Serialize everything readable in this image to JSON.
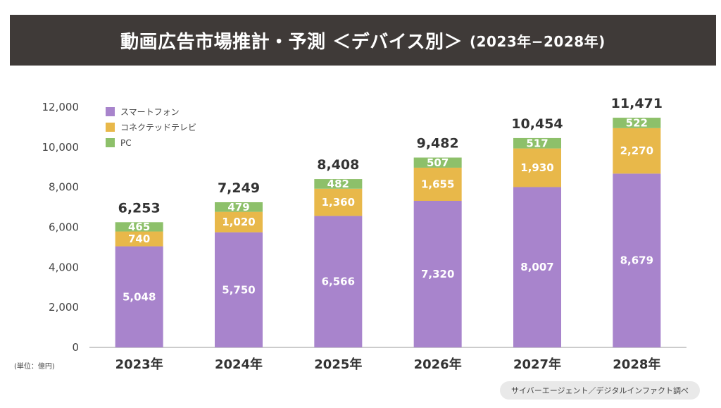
{
  "title": "動画広告市場推計・予測 ＜デバイス別＞",
  "title_range": "(2023年−2028年)",
  "unit_note": "(単位：億円)",
  "source": "サイバーエージェント／デジタルインファクト調べ",
  "colors": {
    "smartphone": "#a884cc",
    "connected_tv": "#e8b84a",
    "pc": "#8dc06a",
    "title_bg": "#3f3a38"
  },
  "chart_data": {
    "type": "bar",
    "stacked": true,
    "categories": [
      "2023年",
      "2024年",
      "2025年",
      "2026年",
      "2027年",
      "2028年"
    ],
    "series": [
      {
        "name": "スマートフォン",
        "values": [
          5048,
          5750,
          6566,
          7320,
          8007,
          8679
        ]
      },
      {
        "name": "コネクテッドテレビ",
        "values": [
          740,
          1020,
          1360,
          1655,
          1930,
          2270
        ]
      },
      {
        "name": "PC",
        "values": [
          465,
          479,
          482,
          507,
          517,
          522
        ]
      }
    ],
    "value_labels": [
      [
        "5,048",
        "5,750",
        "6,566",
        "7,320",
        "8,007",
        "8,679"
      ],
      [
        "740",
        "1,020",
        "1,360",
        "1,655",
        "1,930",
        "2,270"
      ],
      [
        "465",
        "479",
        "482",
        "507",
        "517",
        "522"
      ]
    ],
    "totals": [
      "6,253",
      "7,249",
      "8,408",
      "9,482",
      "10,454",
      "11,471"
    ],
    "yticks": [
      "0",
      "2,000",
      "4,000",
      "6,000",
      "8,000",
      "10,000",
      "12,000"
    ],
    "ylim": [
      0,
      12000
    ],
    "grid": false,
    "legend_position": "top-left"
  }
}
